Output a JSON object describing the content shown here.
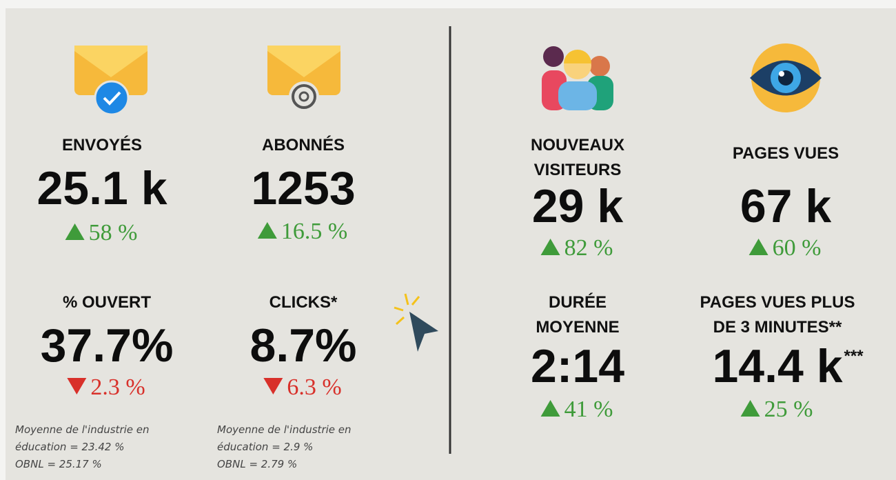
{
  "metrics": [
    {
      "label": [
        "ENVOYÉS"
      ],
      "value": "25.1 k",
      "change": "58 %",
      "direction": "up"
    },
    {
      "label": [
        "ABONNÉS"
      ],
      "value": "1253",
      "change": "16.5 %",
      "direction": "up"
    },
    {
      "label": [
        "% OUVERT"
      ],
      "value": "37.7%",
      "change": "2.3 %",
      "direction": "down"
    },
    {
      "label": [
        "CLICKS*"
      ],
      "value": "8.7%",
      "change": "6.3 %",
      "direction": "down"
    },
    {
      "label": [
        "NOUVEAUX",
        "VISITEURS"
      ],
      "value": "29 k",
      "change": "82 %",
      "direction": "up"
    },
    {
      "label": [
        "PAGES VUES"
      ],
      "value": "67 k",
      "change": "60 %",
      "direction": "up"
    },
    {
      "label": [
        "DURÉE",
        "MOYENNE"
      ],
      "value": "2:14",
      "change": "41 %",
      "direction": "up"
    },
    {
      "label": [
        "PAGES VUES PLUS",
        "DE 3 MINUTES**"
      ],
      "value": "14.4 k",
      "superscript": "***",
      "change": "25 %",
      "direction": "up"
    }
  ],
  "notes": [
    [
      "Moyenne de l'industrie en",
      "éducation = 23.42 %",
      "OBNL = 25.17 %"
    ],
    [
      "Moyenne de l'industrie en",
      "éducation = 2.9 %",
      "OBNL = 2.79 %"
    ]
  ]
}
